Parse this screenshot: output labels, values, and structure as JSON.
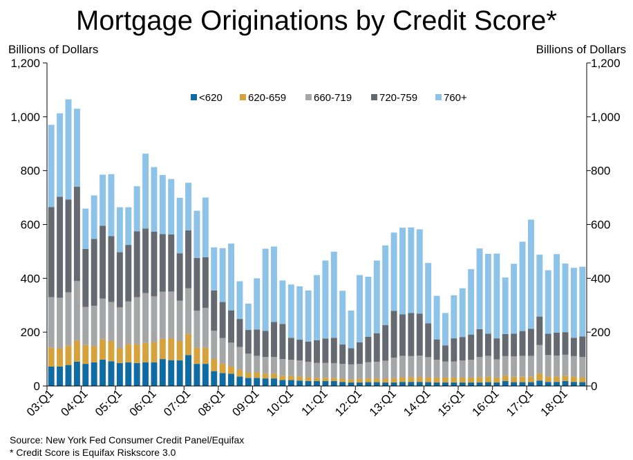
{
  "footnotes": {
    "source": "Source: New York Fed Consumer Credit Panel/Equifax",
    "note": "* Credit Score is Equifax Riskscore 3.0"
  },
  "colors": {
    "lt620": "#0e6ba4",
    "s620_659": "#d5a23e",
    "s660_719": "#a5a6a8",
    "s720_759": "#646a70",
    "s760plus": "#8ec3e9",
    "axis": "#000000"
  },
  "chart_data": {
    "type": "bar",
    "stacked": true,
    "title": "Mortgage Originations by Credit Score*",
    "ylabel": "Billions of Dollars",
    "ylabel_right": "Billions of Dollars",
    "ylim": [
      0,
      1200
    ],
    "yticks": [
      0,
      200,
      400,
      600,
      800,
      1000,
      1200
    ],
    "ytick_labels": [
      "0",
      "200",
      "400",
      "600",
      "800",
      "1,000",
      "1,200"
    ],
    "legend_position": "top-center",
    "grid": false,
    "categories": [
      "03:Q1",
      "03:Q2",
      "03:Q3",
      "03:Q4",
      "04:Q1",
      "04:Q2",
      "04:Q3",
      "04:Q4",
      "05:Q1",
      "05:Q2",
      "05:Q3",
      "05:Q4",
      "06:Q1",
      "06:Q2",
      "06:Q3",
      "06:Q4",
      "07:Q1",
      "07:Q2",
      "07:Q3",
      "07:Q4",
      "08:Q1",
      "08:Q2",
      "08:Q3",
      "08:Q4",
      "09:Q1",
      "09:Q2",
      "09:Q3",
      "09:Q4",
      "10:Q1",
      "10:Q2",
      "10:Q3",
      "10:Q4",
      "11:Q1",
      "11:Q2",
      "11:Q3",
      "11:Q4",
      "12:Q1",
      "12:Q2",
      "12:Q3",
      "12:Q4",
      "13:Q1",
      "13:Q2",
      "13:Q3",
      "13:Q4",
      "14:Q1",
      "14:Q2",
      "14:Q3",
      "14:Q4",
      "15:Q1",
      "15:Q2",
      "15:Q3",
      "15:Q4",
      "16:Q1",
      "16:Q2",
      "16:Q3",
      "16:Q4",
      "17:Q1",
      "17:Q2",
      "17:Q3",
      "17:Q4",
      "18:Q1",
      "18:Q2",
      "18:Q3"
    ],
    "xtick_labels": [
      "03:Q1",
      "04:Q1",
      "05:Q1",
      "06:Q1",
      "07:Q1",
      "08:Q1",
      "09:Q1",
      "10:Q1",
      "11:Q1",
      "12:Q1",
      "13:Q1",
      "14:Q1",
      "15:Q1",
      "16:Q1",
      "17:Q1",
      "18:Q1"
    ],
    "series": [
      {
        "name": "<620",
        "color": "#0e6ba4",
        "values": [
          72,
          72,
          78,
          90,
          82,
          88,
          98,
          92,
          85,
          88,
          85,
          88,
          88,
          100,
          96,
          95,
          115,
          82,
          82,
          55,
          48,
          45,
          35,
          30,
          30,
          28,
          28,
          22,
          22,
          20,
          18,
          18,
          18,
          18,
          15,
          13,
          13,
          14,
          14,
          13,
          13,
          15,
          15,
          15,
          14,
          13,
          13,
          13,
          13,
          13,
          13,
          14,
          13,
          18,
          14,
          14,
          14,
          20,
          15,
          15,
          18,
          15,
          14
        ]
      },
      {
        "name": "620-659",
        "color": "#d5a23e",
        "values": [
          70,
          68,
          72,
          78,
          70,
          60,
          75,
          75,
          55,
          68,
          70,
          72,
          75,
          75,
          80,
          72,
          78,
          60,
          60,
          45,
          35,
          28,
          25,
          20,
          20,
          18,
          18,
          16,
          15,
          15,
          14,
          12,
          12,
          12,
          12,
          12,
          13,
          14,
          14,
          14,
          16,
          17,
          18,
          18,
          18,
          18,
          18,
          18,
          18,
          18,
          20,
          20,
          18,
          21,
          20,
          20,
          20,
          26,
          20,
          20,
          20,
          20,
          18
        ]
      },
      {
        "name": "660-719",
        "color": "#a5a6a8",
        "values": [
          188,
          188,
          198,
          222,
          142,
          150,
          152,
          145,
          152,
          158,
          175,
          185,
          170,
          175,
          175,
          150,
          170,
          138,
          148,
          105,
          95,
          88,
          85,
          70,
          62,
          62,
          62,
          62,
          60,
          60,
          58,
          56,
          56,
          55,
          55,
          55,
          56,
          60,
          62,
          67,
          76,
          80,
          78,
          80,
          75,
          66,
          60,
          60,
          64,
          66,
          75,
          78,
          68,
          72,
          76,
          78,
          78,
          106,
          80,
          78,
          78,
          76,
          76
        ]
      },
      {
        "name": "720-759",
        "color": "#646a70",
        "values": [
          335,
          375,
          345,
          350,
          215,
          248,
          270,
          245,
          205,
          210,
          245,
          240,
          240,
          214,
          212,
          176,
          215,
          196,
          188,
          150,
          134,
          120,
          104,
          88,
          98,
          97,
          130,
          130,
          82,
          77,
          75,
          84,
          90,
          94,
          72,
          60,
          80,
          95,
          106,
          132,
          174,
          154,
          160,
          156,
          126,
          76,
          60,
          86,
          87,
          94,
          103,
          82,
          78,
          82,
          84,
          92,
          100,
          106,
          79,
          85,
          84,
          68,
          76
        ]
      },
      {
        "name": "760+",
        "color": "#8ec3e9",
        "values": [
          305,
          310,
          372,
          290,
          150,
          162,
          190,
          230,
          167,
          140,
          167,
          278,
          240,
          220,
          206,
          206,
          177,
          175,
          222,
          160,
          200,
          248,
          140,
          98,
          190,
          305,
          280,
          162,
          198,
          198,
          190,
          242,
          290,
          320,
          200,
          140,
          250,
          223,
          270,
          296,
          291,
          322,
          318,
          313,
          224,
          162,
          120,
          160,
          181,
          243,
          300,
          297,
          315,
          210,
          260,
          332,
          406,
          230,
          236,
          292,
          255,
          260,
          259
        ]
      }
    ]
  }
}
